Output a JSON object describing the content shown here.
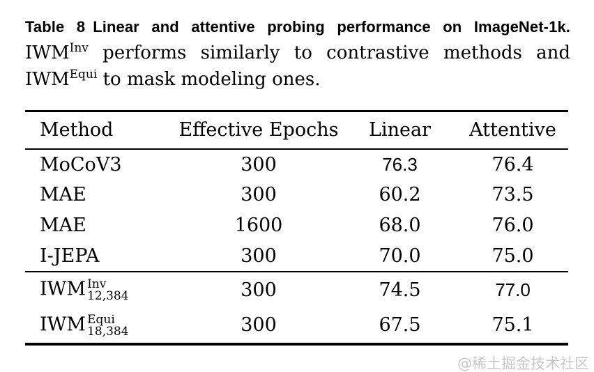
{
  "caption": {
    "label": "Table 8",
    "title": "Linear and attentive probing performance on ImageNet-1k.",
    "description": {
      "part1": "IWM",
      "sup1": "Inv",
      "part2": " performs similarly to contrastive methods and ",
      "part3": "IWM",
      "sup2": "Equi",
      "part4": " to mask modeling ones."
    }
  },
  "table": {
    "headers": [
      "Method",
      "Effective Epochs",
      "Linear",
      "Attentive"
    ],
    "rows": [
      {
        "method": {
          "name": "MoCoV3"
        },
        "epochs": "300",
        "linear": "76.3",
        "attentive": "76.4"
      },
      {
        "method": {
          "name": "MAE"
        },
        "epochs": "300",
        "linear": "60.2",
        "attentive": "73.5"
      },
      {
        "method": {
          "name": "MAE"
        },
        "epochs": "1600",
        "linear": "68.0",
        "attentive": "76.0"
      },
      {
        "method": {
          "name": "I-JEPA"
        },
        "epochs": "300",
        "linear": "70.0",
        "attentive": "75.0"
      },
      {
        "method": {
          "name": "IWM",
          "sup": "Inv",
          "sub": "12,384"
        },
        "epochs": "300",
        "linear": "74.5",
        "attentive": "77.0"
      },
      {
        "method": {
          "name": "IWM",
          "sup": "Equi",
          "sub": "18,384"
        },
        "epochs": "300",
        "linear": "67.5",
        "attentive": "75.1"
      }
    ],
    "bold_cells": [
      "row0:linear",
      "row4:attentive"
    ]
  },
  "watermark": "@稀土掘金技术社区",
  "colors": {
    "text": "#000000",
    "rule": "#000000",
    "watermark": "#c8c8c8",
    "background": "#ffffff"
  }
}
